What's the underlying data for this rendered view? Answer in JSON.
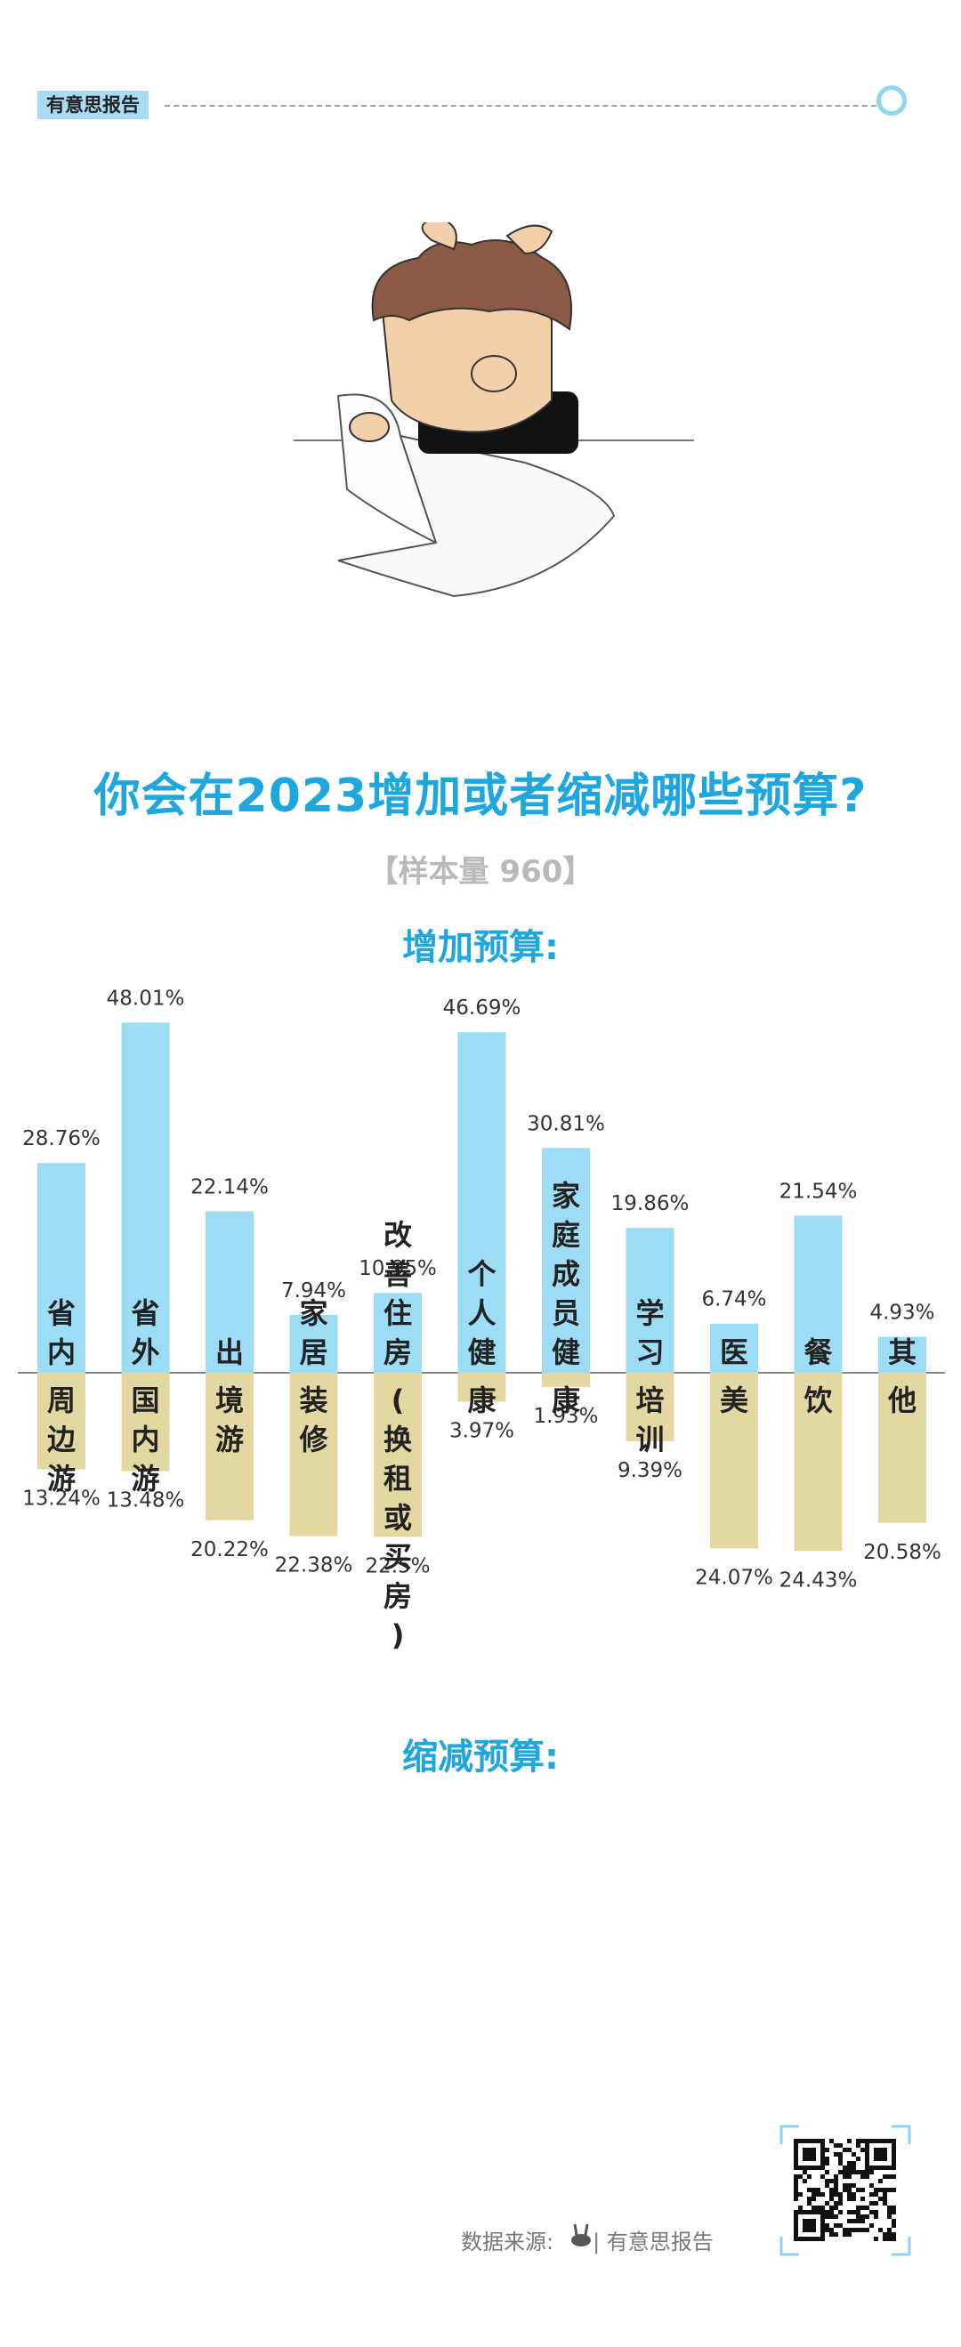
{
  "header": {
    "tag": "有意思报告"
  },
  "title": "你会在2023增加或者缩减哪些预算?",
  "sample_label": "【样本量 960】",
  "increase_title": "增加预算:",
  "decrease_title": "缩减预算:",
  "footer": {
    "source_label": "数据来源:",
    "source_name": "| 有意思报告"
  },
  "colors": {
    "increase": "#9ddcf5",
    "decrease": "#e4d8a2",
    "accent": "#1ea7df"
  },
  "chart_data": {
    "type": "bar",
    "categories": [
      "省内周边游",
      "省外国内游",
      "出境游",
      "家居装修",
      "改善住房(换租或买房)",
      "个人健康",
      "家庭成员健康",
      "学习培训",
      "医美",
      "餐饮",
      "其他"
    ],
    "bar_labels": {
      "top": [
        "省内",
        "省外",
        "出",
        "家居",
        "改善住房",
        "个人健",
        "家庭成员健",
        "学习",
        "医",
        "餐",
        "其"
      ],
      "bottom": [
        "周边游",
        "国内游",
        "境游",
        "装修",
        "(换租或买房)",
        "康",
        "康",
        "培训",
        "美",
        "饮",
        "他"
      ]
    },
    "series": [
      {
        "name": "增加预算",
        "values": [
          28.76,
          48.01,
          22.14,
          7.94,
          10.95,
          46.69,
          30.81,
          19.86,
          6.74,
          21.54,
          4.93
        ]
      },
      {
        "name": "缩减预算",
        "values": [
          13.24,
          13.48,
          20.22,
          22.38,
          22.5,
          3.97,
          1.93,
          9.39,
          24.07,
          24.43,
          20.58
        ]
      }
    ],
    "value_labels": {
      "increase": [
        "28.76%",
        "48.01%",
        "22.14%",
        "7.94%",
        "10.95%",
        "46.69%",
        "30.81%",
        "19.86%",
        "6.74%",
        "21.54%",
        "4.93%"
      ],
      "decrease": [
        "13.24%",
        "13.48%",
        "20.22%",
        "22.38%",
        "22.5%",
        "3.97%",
        "1.93%",
        "9.39%",
        "24.07%",
        "24.43%",
        "20.58%"
      ]
    },
    "ylim": [
      -25,
      50
    ]
  }
}
